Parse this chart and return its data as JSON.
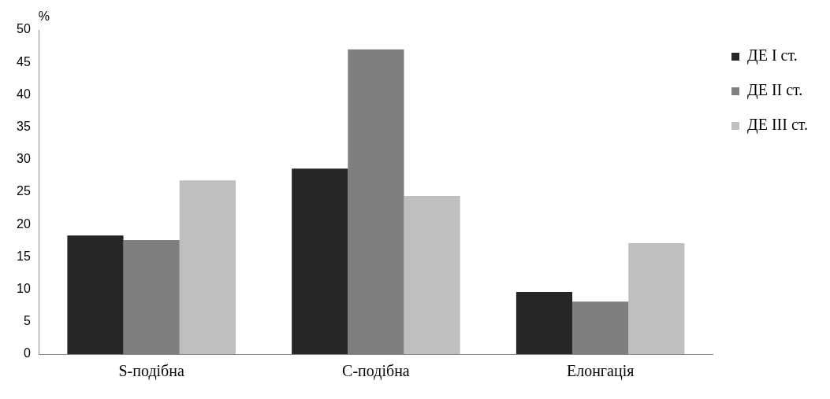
{
  "chart_data": {
    "type": "bar",
    "ylabel": "%",
    "categories": [
      "S-подібна",
      "C-подібна",
      "Елонгація"
    ],
    "series": [
      {
        "name": "ДЕ I ст.",
        "color": "#262626",
        "values": [
          18.3,
          28.6,
          9.6
        ]
      },
      {
        "name": "ДЕ II ст.",
        "color": "#7f7f7f",
        "values": [
          17.6,
          47,
          8.1
        ]
      },
      {
        "name": "ДЕ III ст.",
        "color": "#bfbfbf",
        "values": [
          26.8,
          24.4,
          17.1
        ]
      }
    ],
    "ylim": [
      0,
      50
    ],
    "yticks": [
      0,
      5,
      10,
      15,
      20,
      25,
      30,
      35,
      40,
      45,
      50
    ],
    "grid": false,
    "legend": "right"
  }
}
